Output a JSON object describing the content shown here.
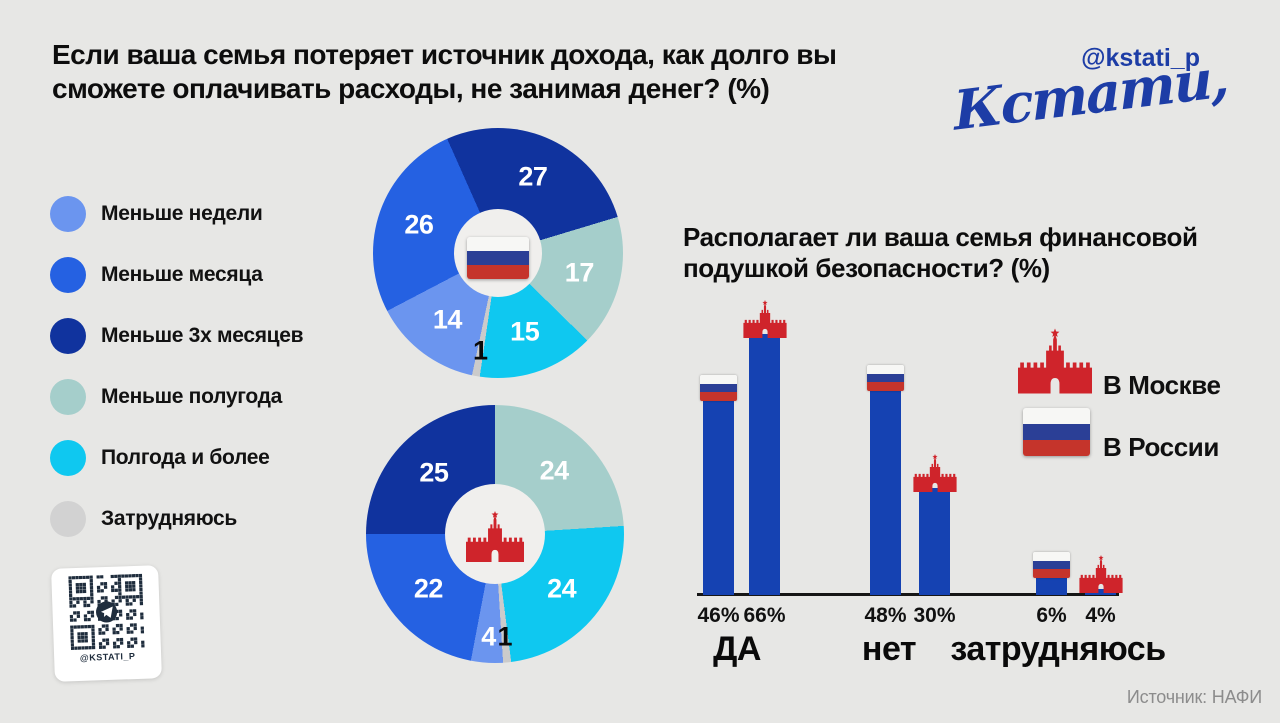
{
  "colors": {
    "background": "#e7e7e5",
    "title_text": "#0d0d0d",
    "brand_blue": "#1d3da6",
    "slice_navy": "#10339e",
    "slice_blue": "#2561e2",
    "slice_lightblue": "#6b95ef",
    "slice_teal": "#a5cecb",
    "slice_cyan": "#0fc8f0",
    "slice_gray": "#cbcbcb",
    "legend_gray": "#d2d2d2",
    "bar_blue": "#1542b2",
    "red": "#cf242b",
    "flag_white": "#f7f7f5",
    "flag_navy": "#2b3f96",
    "flag_red": "#c5342b",
    "qr_dark": "#1f2d3d",
    "source_gray": "#8c8c8c"
  },
  "header": {
    "title": "Если ваша семья потеряет источник дохода, как долго вы\nсможете оплачивать расходы, не занимая денег? (%)",
    "handle": "@kstati_p",
    "logo": "Кстати,"
  },
  "legend": {
    "items": [
      {
        "label": "Меньше недели",
        "color": "#6b95ef"
      },
      {
        "label": "Меньше месяца",
        "color": "#2561e2"
      },
      {
        "label": "Меньше 3х месяцев",
        "color": "#10339e"
      },
      {
        "label": "Меньше полугода",
        "color": "#a5cecb"
      },
      {
        "label": "Полгода и более",
        "color": "#0fc8f0"
      },
      {
        "label": "Затрудняюсь",
        "color": "#d2d2d2"
      }
    ]
  },
  "chart_data": [
    {
      "id": "pie-russia",
      "type": "pie",
      "region": "В России",
      "center_icon": "russian-flag-icon",
      "start_angle": -24,
      "slices": [
        {
          "category": "Меньше 3х месяцев",
          "value": 27,
          "color": "#10339e",
          "text_color": "#ffffff"
        },
        {
          "category": "Меньше полугода",
          "value": 17,
          "color": "#a5cecb",
          "text_color": "#ffffff"
        },
        {
          "category": "Полгода и более",
          "value": 15,
          "color": "#0fc8f0",
          "text_color": "#ffffff"
        },
        {
          "category": "Затрудняюсь",
          "value": 1,
          "color": "#cbcbcb",
          "text_color": "#0a0a0a"
        },
        {
          "category": "Меньше недели",
          "value": 14,
          "color": "#6b95ef",
          "text_color": "#ffffff"
        },
        {
          "category": "Меньше месяца",
          "value": 26,
          "color": "#2561e2",
          "text_color": "#ffffff"
        }
      ]
    },
    {
      "id": "pie-moscow",
      "type": "pie",
      "region": "В Москве",
      "center_icon": "kremlin-icon",
      "start_angle": 0,
      "slices": [
        {
          "category": "Меньше полугода",
          "value": 24,
          "color": "#a5cecb",
          "text_color": "#ffffff"
        },
        {
          "category": "Полгода и более",
          "value": 24,
          "color": "#0fc8f0",
          "text_color": "#ffffff"
        },
        {
          "category": "Затрудняюсь",
          "value": 1,
          "color": "#cbcbcb",
          "text_color": "#0a0a0a"
        },
        {
          "category": "Меньше недели",
          "value": 4,
          "color": "#6b95ef",
          "text_color": "#ffffff"
        },
        {
          "category": "Меньше месяца",
          "value": 22,
          "color": "#2561e2",
          "text_color": "#ffffff"
        },
        {
          "category": "Меньше 3х месяцев",
          "value": 25,
          "color": "#10339e",
          "text_color": "#ffffff"
        }
      ]
    },
    {
      "id": "cushion-bars",
      "type": "bar",
      "title": "Располагает ли ваша семья финансовой\nподушкой безопасности? (%)",
      "groups": [
        {
          "label": "ДА",
          "bars": [
            {
              "series": "В России",
              "value": 46,
              "display": "46%"
            },
            {
              "series": "В Москве",
              "value": 66,
              "display": "66%"
            }
          ]
        },
        {
          "label": "нет",
          "bars": [
            {
              "series": "В России",
              "value": 48,
              "display": "48%"
            },
            {
              "series": "В Москве",
              "value": 30,
              "display": "30%"
            }
          ]
        },
        {
          "label": "затрудняюсь",
          "bars": [
            {
              "series": "В России",
              "value": 6,
              "display": "6%"
            },
            {
              "series": "В Москве",
              "value": 4,
              "display": "4%"
            }
          ]
        }
      ],
      "series_legend": [
        {
          "label": "В Москве",
          "icon": "kremlin-icon"
        },
        {
          "label": "В России",
          "icon": "russian-flag-icon"
        }
      ]
    }
  ],
  "qr": {
    "caption": "@KSTATI_P"
  },
  "footer": {
    "source": "Источник: НАФИ"
  }
}
